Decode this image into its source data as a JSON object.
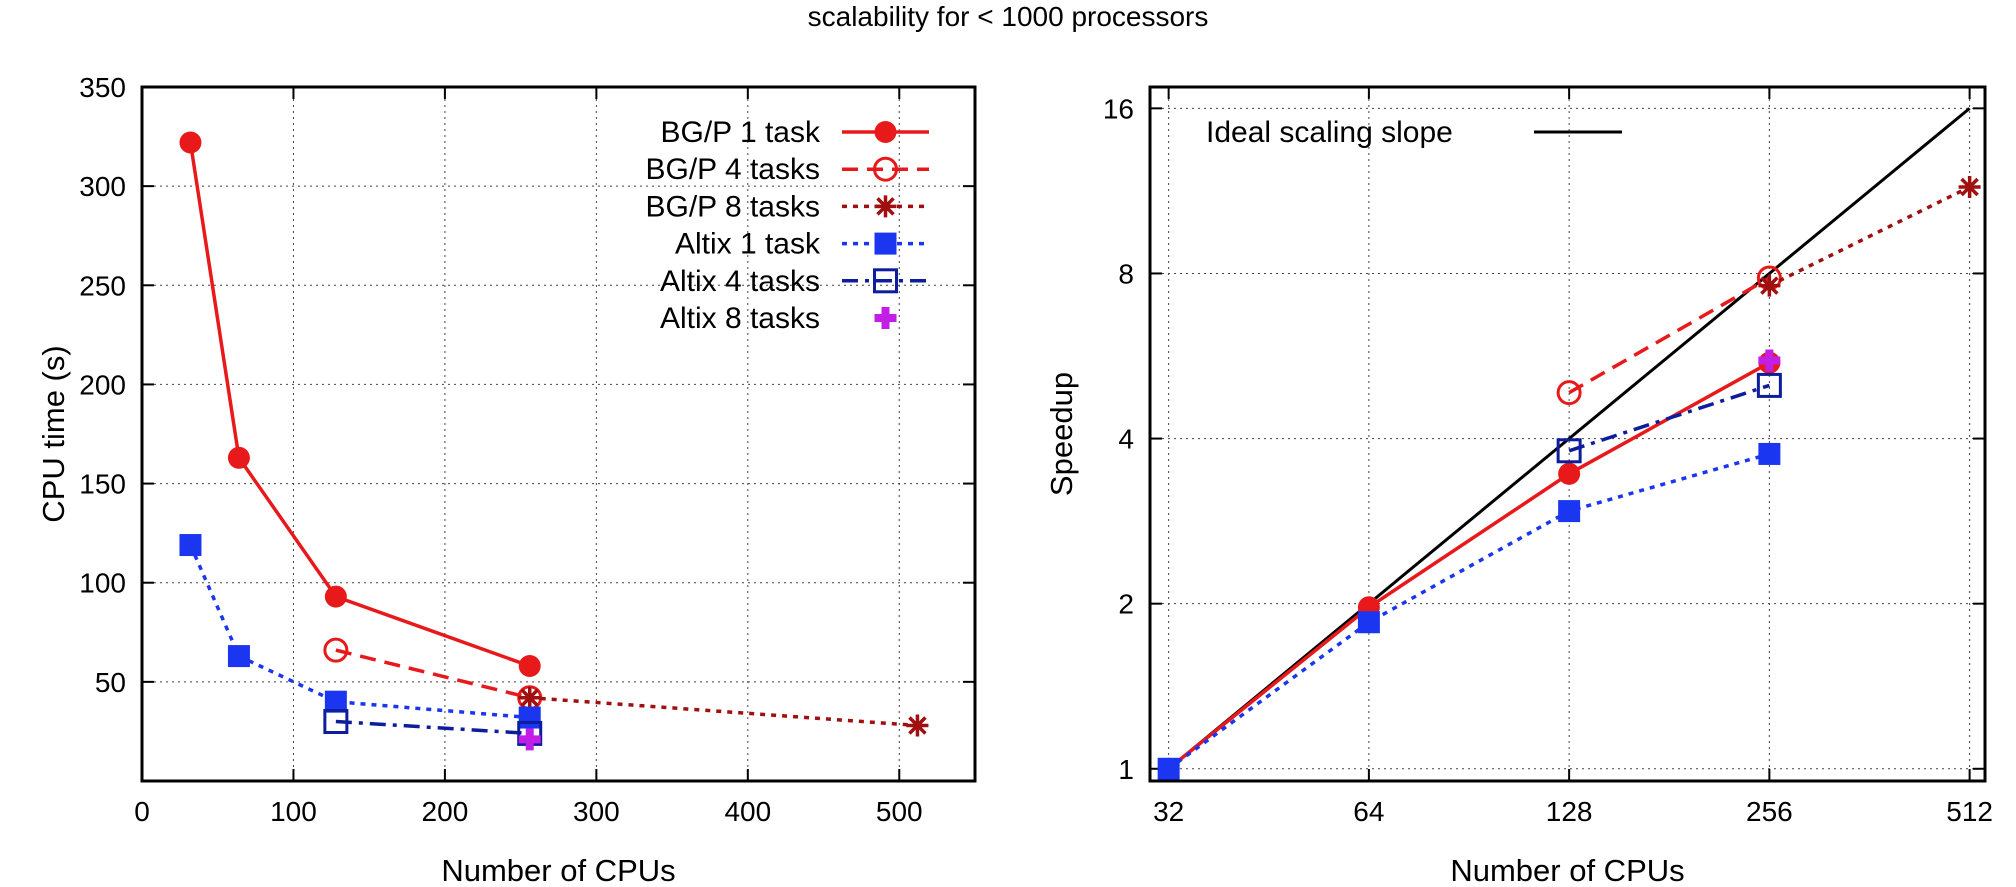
{
  "figure_title": "scalability for < 1000 processors",
  "colors": {
    "bgp_1": "#e8191b",
    "bgp_4": "#e8191b",
    "bgp_8": "#a01010",
    "altix_1": "#1a36f0",
    "altix_4": "#0d1d9c",
    "altix_8": "#c21ee6",
    "ideal": "#000000"
  },
  "chart_data": [
    {
      "type": "line",
      "title": "",
      "xlabel": "Number of CPUs",
      "ylabel": "CPU time (s)",
      "xlim": [
        0,
        550
      ],
      "ylim": [
        0,
        350
      ],
      "xticks": [
        0,
        100,
        200,
        300,
        400,
        500
      ],
      "yticks": [
        50,
        100,
        150,
        200,
        250,
        300,
        350
      ],
      "grid": true,
      "legend_position": "top-right",
      "series": [
        {
          "name": "BG/P 1 task",
          "key": "bgp_1",
          "marker": "filled-circle",
          "dash": "solid",
          "x": [
            32,
            64,
            128,
            256
          ],
          "y": [
            322,
            163,
            93,
            58
          ]
        },
        {
          "name": "BG/P 4 tasks",
          "key": "bgp_4",
          "marker": "open-circle",
          "dash": "dash",
          "x": [
            128,
            256
          ],
          "y": [
            66,
            42
          ]
        },
        {
          "name": "BG/P 8 tasks",
          "key": "bgp_8",
          "marker": "asterisk",
          "dash": "dot",
          "x": [
            256,
            512
          ],
          "y": [
            42,
            28
          ]
        },
        {
          "name": "Altix 1 task",
          "key": "altix_1",
          "marker": "filled-square",
          "dash": "dot",
          "x": [
            32,
            64,
            128,
            256
          ],
          "y": [
            119,
            63,
            40,
            32
          ]
        },
        {
          "name": "Altix 4 tasks",
          "key": "altix_4",
          "marker": "open-square",
          "dash": "dashdot",
          "x": [
            128,
            256
          ],
          "y": [
            30,
            24
          ]
        },
        {
          "name": "Altix 8 tasks",
          "key": "altix_8",
          "marker": "plus",
          "dash": "none",
          "x": [
            256
          ],
          "y": [
            21
          ]
        }
      ]
    },
    {
      "type": "line",
      "title": "",
      "xlabel": "Number of CPUs",
      "ylabel": "Speedup",
      "xscale": "log2",
      "yscale": "log2",
      "xlim": [
        30,
        540
      ],
      "ylim": [
        0.95,
        17.5
      ],
      "xticks": [
        32,
        64,
        128,
        256,
        512
      ],
      "yticks": [
        1,
        2,
        4,
        8,
        16
      ],
      "grid": true,
      "legend_position": "top-left",
      "series": [
        {
          "name": "Ideal scaling slope",
          "key": "ideal",
          "marker": "none",
          "dash": "solid",
          "x": [
            32,
            512
          ],
          "y": [
            1,
            16
          ]
        },
        {
          "key": "bgp_1",
          "marker": "filled-circle",
          "dash": "solid",
          "x": [
            32,
            64,
            128,
            256
          ],
          "y": [
            1,
            1.97,
            3.45,
            5.5
          ]
        },
        {
          "key": "bgp_4",
          "marker": "open-circle",
          "dash": "dash",
          "x": [
            128,
            256
          ],
          "y": [
            4.85,
            7.85
          ]
        },
        {
          "key": "bgp_8",
          "marker": "asterisk",
          "dash": "dot",
          "x": [
            256,
            512
          ],
          "y": [
            7.6,
            11.5
          ]
        },
        {
          "key": "altix_1",
          "marker": "filled-square",
          "dash": "dot",
          "x": [
            32,
            64,
            128,
            256
          ],
          "y": [
            1,
            1.85,
            2.95,
            3.75
          ]
        },
        {
          "key": "altix_4",
          "marker": "open-square",
          "dash": "dashdot",
          "x": [
            128,
            256
          ],
          "y": [
            3.8,
            5.0
          ]
        },
        {
          "key": "altix_8",
          "marker": "plus",
          "dash": "none",
          "x": [
            256
          ],
          "y": [
            5.55
          ]
        }
      ]
    }
  ]
}
